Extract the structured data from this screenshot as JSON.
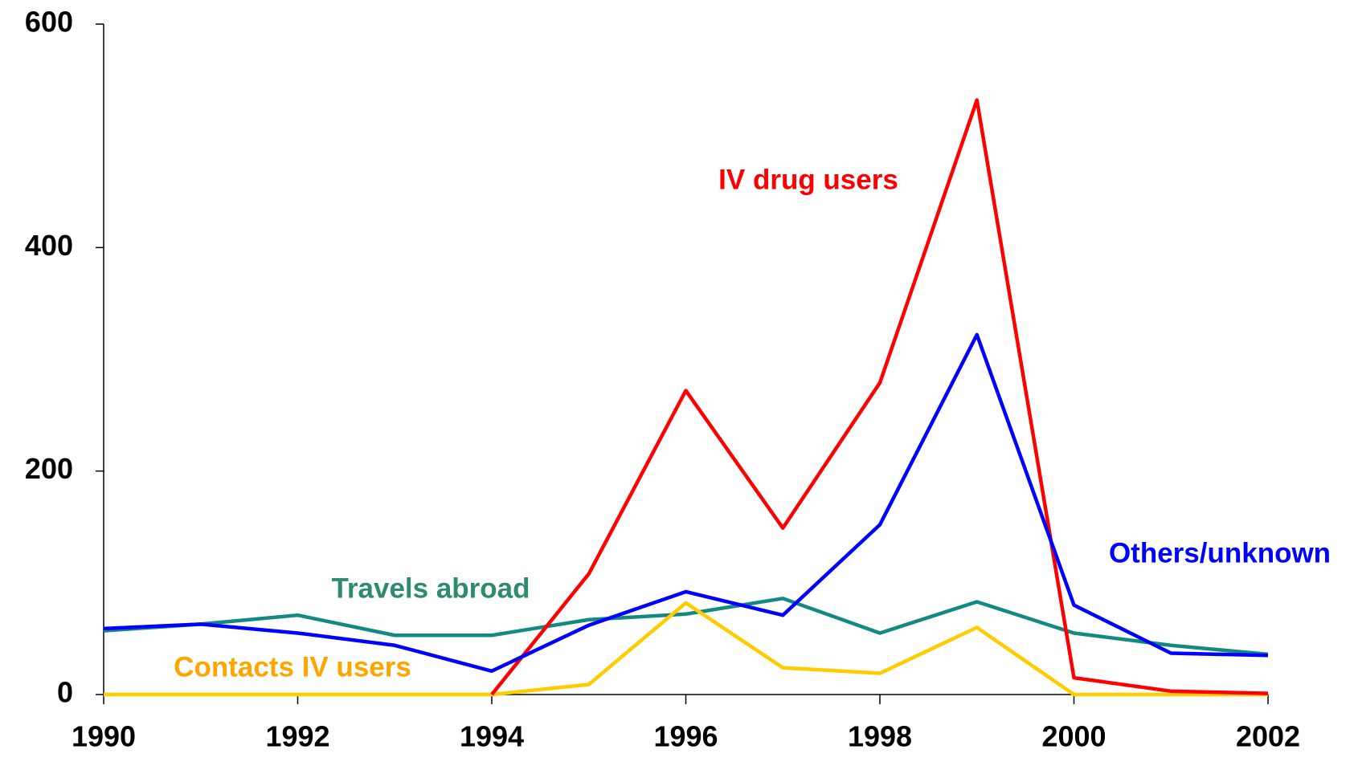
{
  "chart_data": {
    "type": "line",
    "x": [
      1990,
      1991,
      1992,
      1993,
      1994,
      1995,
      1996,
      1997,
      1998,
      1999,
      2000,
      2001,
      2002
    ],
    "xlim": [
      1990,
      2002
    ],
    "xticks": [
      1990,
      1992,
      1994,
      1996,
      1998,
      2000,
      2002
    ],
    "ylim": [
      0,
      600
    ],
    "yticks": [
      0,
      200,
      400,
      600
    ],
    "grid": false,
    "series": [
      {
        "name": "Travels abroad",
        "color": "#128a80",
        "label_color": "#2e8b6e",
        "values": [
          57,
          63,
          71,
          53,
          53,
          67,
          72,
          86,
          55,
          83,
          55,
          44,
          36
        ]
      },
      {
        "name": "Contacts IV users",
        "color": "#ffcc00",
        "label_color": "#ffa500",
        "values": [
          0,
          0,
          0,
          0,
          0,
          9,
          82,
          24,
          19,
          60,
          0,
          0,
          0
        ]
      },
      {
        "name": "IV drug users",
        "color": "#ff0000",
        "label_color": "#ff0000",
        "values": [
          null,
          null,
          null,
          null,
          0,
          108,
          272,
          149,
          279,
          532,
          15,
          3,
          1
        ]
      },
      {
        "name": "Others/unknown",
        "color": "#0000ff",
        "label_color": "#0000ff",
        "values": [
          59,
          63,
          55,
          44,
          21,
          62,
          92,
          71,
          152,
          322,
          80,
          37,
          35
        ]
      }
    ]
  }
}
